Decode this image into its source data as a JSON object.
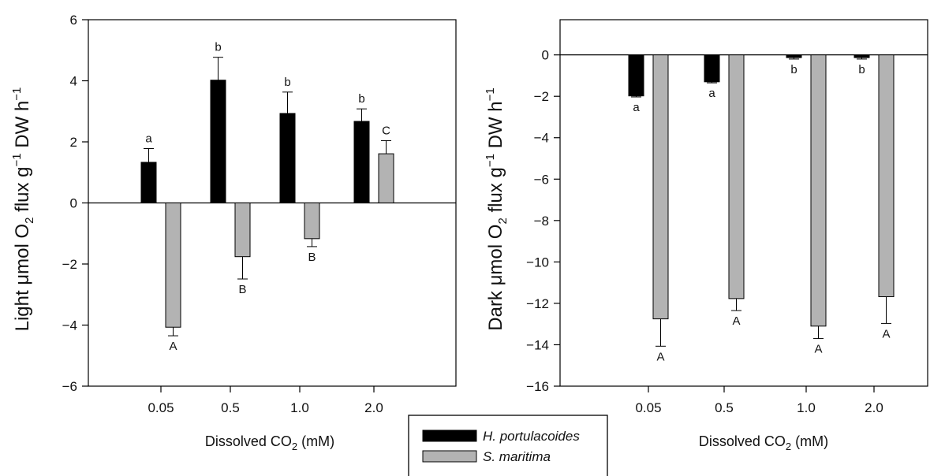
{
  "chart_data": [
    {
      "type": "bar",
      "panel": "left",
      "categories": [
        "0.05",
        "0.5",
        "1.0",
        "2.0"
      ],
      "ylabel": {
        "main": "Light ",
        "mu": "μ",
        "mid": "mol O",
        "sub": "2",
        "mid2": " flux g",
        "sup": "−1",
        "tail": " DW h",
        "sup2": "−1"
      },
      "xlabel": {
        "main": "Dissolved CO",
        "sub": "2",
        "tail": " (mM)"
      },
      "ylim": [
        -6,
        6
      ],
      "yticks": [
        "−6",
        "−4",
        "−2",
        "0",
        "2",
        "4",
        "6"
      ],
      "ytick_values": [
        -6,
        -4,
        -2,
        0,
        2,
        4,
        6
      ],
      "series": [
        {
          "name": "H. portulacoides",
          "color": "#000000",
          "values": [
            1.33,
            4.02,
            2.93,
            2.67
          ],
          "err_hi": [
            1.78,
            4.77,
            3.63,
            3.08
          ],
          "err_lo": [
            null,
            null,
            null,
            null
          ],
          "letters": [
            "a",
            "b",
            "b",
            "b"
          ]
        },
        {
          "name": "S. maritima",
          "color": "#b3b3b3",
          "values": [
            -4.07,
            -1.76,
            -1.17,
            1.61
          ],
          "err_hi": [
            null,
            null,
            null,
            2.04
          ],
          "err_lo": [
            -4.35,
            -2.49,
            -1.43,
            null
          ],
          "letters": [
            "A",
            "B",
            "B",
            "C"
          ]
        }
      ]
    },
    {
      "type": "bar",
      "panel": "right",
      "categories": [
        "0.05",
        "0.5",
        "1.0",
        "2.0"
      ],
      "ylabel": {
        "main": "Dark ",
        "mu": "μ",
        "mid": "mol O",
        "sub": "2",
        "mid2": " flux g",
        "sup": "−1",
        "tail": " DW h",
        "sup2": "−1"
      },
      "xlabel": {
        "main": "Dissolved CO",
        "sub": "2",
        "tail": " (mM)"
      },
      "ylim": [
        -16,
        1.7
      ],
      "yticks": [
        "−16",
        "−14",
        "−12",
        "−10",
        "−8",
        "−6",
        "−4",
        "−2",
        "0"
      ],
      "ytick_values": [
        -16,
        -14,
        -12,
        -10,
        -8,
        -6,
        -4,
        -2,
        0
      ],
      "series": [
        {
          "name": "H. portulacoides",
          "color": "#000000",
          "values": [
            -1.98,
            -1.3,
            -0.13,
            -0.13
          ],
          "err_hi": [
            null,
            null,
            null,
            null
          ],
          "err_lo": [
            -2.03,
            -1.35,
            -0.2,
            -0.2
          ],
          "letters": [
            "a",
            "a",
            "b",
            "b"
          ]
        },
        {
          "name": "S. maritima",
          "color": "#b3b3b3",
          "values": [
            -12.75,
            -11.77,
            -13.1,
            -11.68
          ],
          "err_hi": [
            null,
            null,
            null,
            null
          ],
          "err_lo": [
            -14.07,
            -12.35,
            -13.7,
            -12.97
          ],
          "letters": [
            "A",
            "A",
            "A",
            "A"
          ]
        }
      ]
    }
  ],
  "legend": {
    "items": [
      {
        "label": "H. portulacoides",
        "color": "#000000"
      },
      {
        "label": "S. maritima",
        "color": "#b3b3b3"
      }
    ]
  }
}
